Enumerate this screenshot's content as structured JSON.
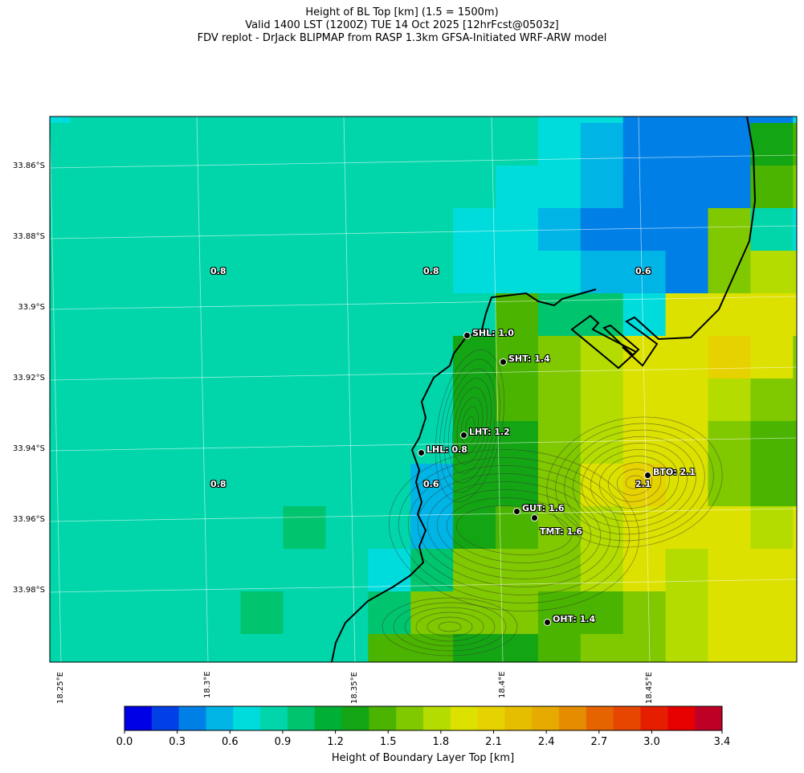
{
  "title": [
    "Height of BL Top [km] (1.5 = 1500m)",
    "Valid 1400 LST (1200Z) TUE 14 Oct 2025 [12hrFcst@0503z]",
    "FDV replot - DrJack BLIPMAP from RASP 1.3km GFSA-Initiated WRF-ARW model"
  ],
  "lat_labels": [
    "33.86°S",
    "33.88°S",
    "33.9°S",
    "33.92°S",
    "33.94°S",
    "33.96°S",
    "33.98°S"
  ],
  "lon_labels": [
    "18.25°E",
    "18.3°E",
    "18.35°E",
    "18.4°E",
    "18.45°E"
  ],
  "area_values": [
    "0.8",
    "0.8",
    "0.6",
    "0.8",
    "0.6",
    "2.1"
  ],
  "stations": [
    {
      "label": "SHL: 1.0"
    },
    {
      "label": "SHT: 1.4"
    },
    {
      "label": "LHT: 1.2"
    },
    {
      "label": "LHL: 0.8"
    },
    {
      "label": "BTO: 2.1"
    },
    {
      "label": "GUT: 1.6"
    },
    {
      "label": "TMT: 1.6"
    },
    {
      "label": "OHT: 1.4"
    }
  ],
  "colorbar": {
    "label": "Height of Boundary Layer Top [km]",
    "min": 0,
    "max": 3.4,
    "ticks": [
      "0.0",
      "0.3",
      "0.6",
      "0.9",
      "1.2",
      "1.5",
      "1.8",
      "2.1",
      "2.4",
      "2.7",
      "3.0",
      "3.4"
    ],
    "colors": [
      "#0000e6",
      "#0040e6",
      "#0080e6",
      "#00b4e6",
      "#00dcdc",
      "#00d6aa",
      "#00c46e",
      "#00b035",
      "#14a514",
      "#4ab400",
      "#80c800",
      "#b4dc00",
      "#dce100",
      "#e6d200",
      "#e6be00",
      "#e6aa00",
      "#e68c00",
      "#e66400",
      "#e64600",
      "#e61e00",
      "#e60000",
      "#be0026"
    ]
  },
  "chart_data": {
    "type": "heatmap",
    "title": "Height of BL Top [km]",
    "note": "cell values are colorbar bin indices (0-21, bin width ~0.155 km)",
    "grid": [
      [
        4,
        5,
        5,
        5,
        5,
        5,
        5,
        5,
        5,
        5,
        5,
        5,
        4,
        4,
        2,
        2,
        2,
        2,
        4
      ],
      [
        5,
        5,
        5,
        5,
        5,
        5,
        5,
        5,
        5,
        5,
        5,
        5,
        4,
        3,
        2,
        2,
        2,
        8,
        9
      ],
      [
        5,
        5,
        5,
        5,
        5,
        5,
        5,
        5,
        5,
        5,
        5,
        4,
        4,
        3,
        2,
        2,
        2,
        9,
        10
      ],
      [
        5,
        5,
        5,
        5,
        5,
        5,
        5,
        5,
        5,
        5,
        4,
        4,
        3,
        2,
        2,
        2,
        10,
        5,
        4
      ],
      [
        5,
        5,
        5,
        5,
        5,
        5,
        5,
        5,
        5,
        5,
        4,
        4,
        4,
        3,
        3,
        2,
        10,
        11,
        11
      ],
      [
        5,
        5,
        5,
        5,
        5,
        5,
        5,
        5,
        5,
        5,
        5,
        9,
        6,
        6,
        4,
        12,
        12,
        12,
        12
      ],
      [
        5,
        5,
        5,
        5,
        5,
        5,
        5,
        5,
        5,
        5,
        8,
        9,
        10,
        11,
        12,
        12,
        13,
        12,
        10
      ],
      [
        5,
        5,
        5,
        5,
        5,
        5,
        5,
        5,
        5,
        5,
        8,
        9,
        10,
        11,
        12,
        12,
        11,
        10,
        10
      ],
      [
        5,
        5,
        5,
        5,
        5,
        5,
        5,
        5,
        5,
        5,
        8,
        8,
        10,
        11,
        12,
        12,
        10,
        9,
        9
      ],
      [
        5,
        5,
        5,
        5,
        5,
        5,
        5,
        5,
        5,
        3,
        8,
        8,
        10,
        12,
        13,
        12,
        10,
        9,
        9
      ],
      [
        5,
        5,
        5,
        5,
        5,
        5,
        6,
        5,
        5,
        3,
        8,
        9,
        10,
        11,
        12,
        12,
        12,
        11,
        12
      ],
      [
        5,
        5,
        5,
        5,
        5,
        5,
        5,
        5,
        4,
        6,
        10,
        10,
        10,
        11,
        12,
        11,
        12,
        12,
        12
      ],
      [
        5,
        5,
        5,
        5,
        5,
        6,
        5,
        5,
        6,
        10,
        10,
        10,
        9,
        9,
        10,
        11,
        12,
        12,
        12
      ],
      [
        5,
        5,
        5,
        5,
        5,
        5,
        5,
        5,
        9,
        9,
        8,
        8,
        9,
        10,
        10,
        11,
        12,
        12,
        12
      ]
    ]
  }
}
